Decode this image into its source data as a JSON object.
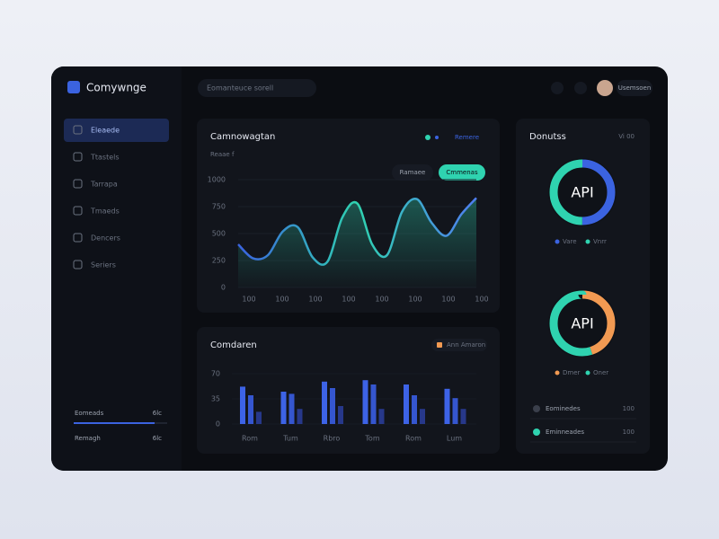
{
  "app": {
    "brand": "Comywnge",
    "search": "Eomanteuce sorell",
    "user": "Usemsoen"
  },
  "sidebar": {
    "items": [
      "Eleaede",
      "Ttastels",
      "Tarrapa",
      "Tmaeds",
      "Dencers",
      "Seriers"
    ],
    "footer": [
      {
        "label": "Eomeads",
        "value": "6lc"
      },
      {
        "label": "Remagh",
        "value": "6lc"
      }
    ]
  },
  "line_chart": {
    "type": "line",
    "title": "Camnowagtan",
    "subtitle": "Reaae f",
    "legend": "Remere",
    "buttons": [
      "Ramaee",
      "Cmmenas"
    ],
    "color": "#4f7df0",
    "ylim": [
      0,
      1000
    ],
    "yticks": [
      0,
      250,
      500,
      750,
      1000
    ],
    "x_labels": [
      "100",
      "100",
      "100",
      "100",
      "100",
      "100",
      "100",
      "100"
    ],
    "values": [
      400,
      270,
      300,
      520,
      560,
      280,
      240,
      650,
      780,
      400,
      300,
      700,
      820,
      600,
      480,
      680,
      830
    ]
  },
  "bar_chart": {
    "type": "bar",
    "title": "Comdaren",
    "legend": "Ann Amaron",
    "legend_color": "#f29a52",
    "categories": [
      "Rom",
      "Tum",
      "Rbro",
      "Tom",
      "Rom",
      "Lum"
    ],
    "ylim": [
      0,
      70
    ],
    "yticks": [
      0,
      35,
      70
    ],
    "series": [
      {
        "color": "#3d63e6",
        "values": [
          52,
          45,
          59,
          61,
          55,
          49
        ]
      },
      {
        "color": "#3556cf",
        "values": [
          40,
          42,
          50,
          55,
          40,
          36
        ]
      },
      {
        "color": "#27388a",
        "values": [
          17,
          21,
          25,
          21,
          21,
          21
        ]
      }
    ]
  },
  "donuts": {
    "title": "Donutss",
    "badge": "Vi 00",
    "items": [
      {
        "label": "API",
        "legend": [
          "Vare",
          "Vnrr"
        ],
        "segments": [
          {
            "color": "#3b63e0",
            "value": 50
          },
          {
            "color": "#2fd3b0",
            "value": 50
          }
        ]
      },
      {
        "label": "API",
        "legend": [
          "Dmer",
          "Oner"
        ],
        "segments": [
          {
            "color": "#f29a52",
            "value": 45
          },
          {
            "color": "#2fd3b0",
            "value": 55
          }
        ]
      }
    ]
  },
  "list": [
    {
      "label": "Eominedes",
      "value": "100"
    },
    {
      "label": "Eminneades",
      "value": "100"
    }
  ]
}
